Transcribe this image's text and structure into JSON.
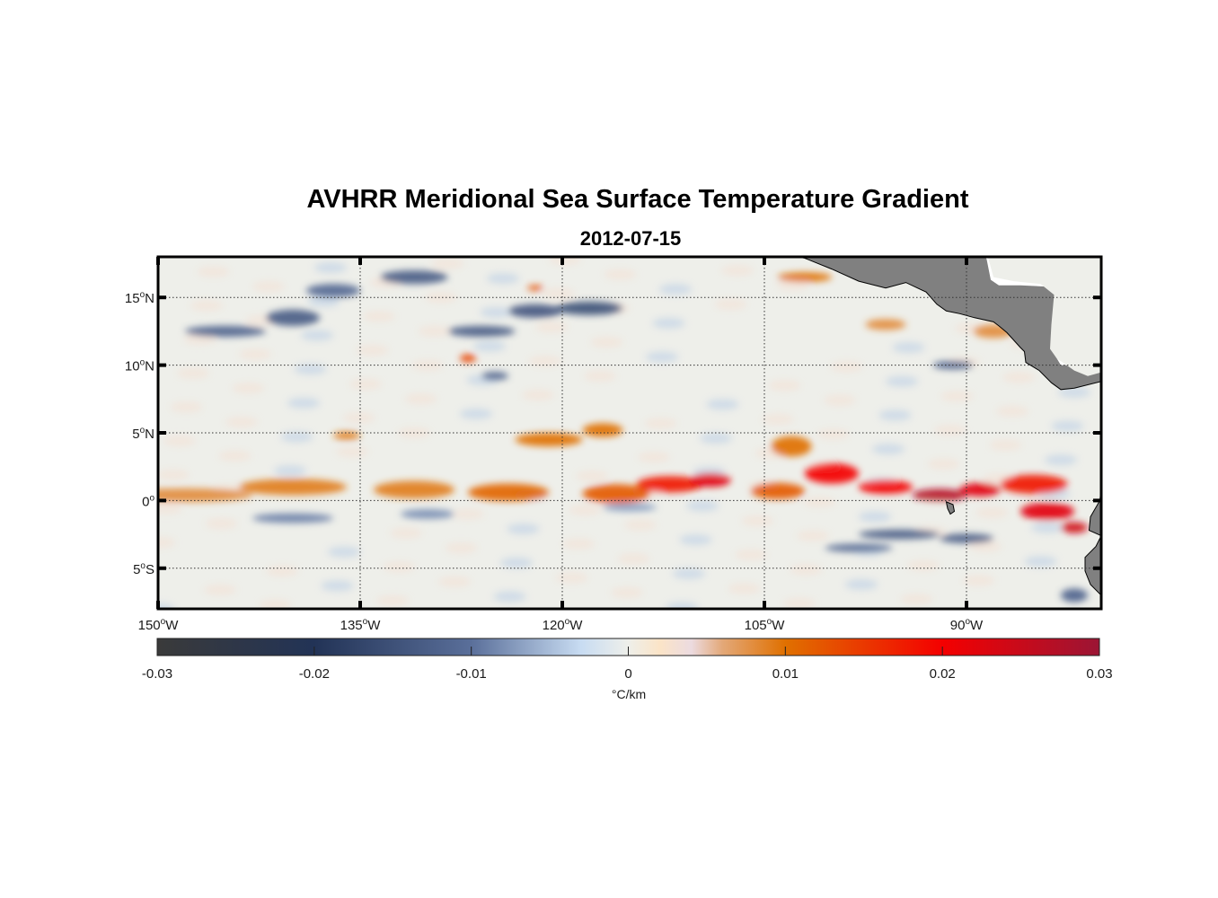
{
  "title": "AVHRR Meridional Sea Surface Temperature Gradient",
  "subtitle": "2012-07-15",
  "map": {
    "lon_range": [
      -150,
      -80
    ],
    "lat_range": [
      -8,
      18
    ],
    "lat_ticks": [
      {
        "value": 15,
        "num": "15",
        "hem": "N"
      },
      {
        "value": 10,
        "num": "10",
        "hem": "N"
      },
      {
        "value": 5,
        "num": "5",
        "hem": "N"
      },
      {
        "value": 0,
        "num": "0",
        "hem": ""
      },
      {
        "value": -5,
        "num": "5",
        "hem": "S"
      }
    ],
    "lon_ticks": [
      {
        "value": -150,
        "num": "150",
        "hem": "W"
      },
      {
        "value": -135,
        "num": "135",
        "hem": "W"
      },
      {
        "value": -120,
        "num": "120",
        "hem": "W"
      },
      {
        "value": -105,
        "num": "105",
        "hem": "W"
      },
      {
        "value": -90,
        "num": "90",
        "hem": "W"
      }
    ],
    "land_color": "#808080",
    "field_features": [
      {
        "lon": -148,
        "lat": 0.4,
        "w": 10,
        "h": 1.0,
        "v": 0.008
      },
      {
        "lon": -140,
        "lat": 1.0,
        "w": 8,
        "h": 1.2,
        "v": 0.009
      },
      {
        "lon": -131,
        "lat": 0.8,
        "w": 6,
        "h": 1.3,
        "v": 0.009
      },
      {
        "lon": -124,
        "lat": 0.6,
        "w": 6,
        "h": 1.3,
        "v": 0.011
      },
      {
        "lon": -116,
        "lat": 0.5,
        "w": 5,
        "h": 1.4,
        "v": 0.012
      },
      {
        "lon": -112,
        "lat": 1.2,
        "w": 5,
        "h": 1.2,
        "v": 0.018
      },
      {
        "lon": -109,
        "lat": 1.5,
        "w": 3,
        "h": 1.0,
        "v": 0.022
      },
      {
        "lon": -104,
        "lat": 0.7,
        "w": 4,
        "h": 1.2,
        "v": 0.012
      },
      {
        "lon": -100,
        "lat": 2.0,
        "w": 4,
        "h": 1.5,
        "v": 0.02
      },
      {
        "lon": -96,
        "lat": 1.0,
        "w": 4,
        "h": 1.0,
        "v": 0.02
      },
      {
        "lon": -92,
        "lat": 0.4,
        "w": 4,
        "h": 0.9,
        "v": 0.027
      },
      {
        "lon": -89,
        "lat": 0.8,
        "w": 3,
        "h": 1.0,
        "v": 0.022
      },
      {
        "lon": -85,
        "lat": 1.2,
        "w": 5,
        "h": 1.4,
        "v": 0.018
      },
      {
        "lon": -84,
        "lat": -0.8,
        "w": 4,
        "h": 1.3,
        "v": 0.022
      },
      {
        "lon": -82,
        "lat": -2.0,
        "w": 2,
        "h": 0.8,
        "v": 0.024
      },
      {
        "lon": -121,
        "lat": 4.5,
        "w": 5,
        "h": 1.0,
        "v": 0.01
      },
      {
        "lon": -117,
        "lat": 5.2,
        "w": 3,
        "h": 1.0,
        "v": 0.01
      },
      {
        "lon": -103,
        "lat": 4.0,
        "w": 3,
        "h": 1.5,
        "v": 0.01
      },
      {
        "lon": -136,
        "lat": 4.8,
        "w": 2,
        "h": 0.6,
        "v": 0.009
      },
      {
        "lon": -102,
        "lat": 16.5,
        "w": 4,
        "h": 0.7,
        "v": 0.01
      },
      {
        "lon": -96,
        "lat": 13.0,
        "w": 3,
        "h": 0.8,
        "v": 0.008
      },
      {
        "lon": -88,
        "lat": 12.5,
        "w": 3,
        "h": 1.0,
        "v": 0.008
      },
      {
        "lon": -127,
        "lat": 10.5,
        "w": 1.2,
        "h": 0.6,
        "v": 0.014
      },
      {
        "lon": -122,
        "lat": 15.7,
        "w": 1.2,
        "h": 0.4,
        "v": 0.013
      },
      {
        "lon": -145,
        "lat": 12.5,
        "w": 6,
        "h": 0.8,
        "v": -0.012
      },
      {
        "lon": -140,
        "lat": 13.5,
        "w": 4,
        "h": 1.2,
        "v": -0.013
      },
      {
        "lon": -137,
        "lat": 15.5,
        "w": 4,
        "h": 1.0,
        "v": -0.011
      },
      {
        "lon": -131,
        "lat": 16.5,
        "w": 5,
        "h": 1.0,
        "v": -0.013
      },
      {
        "lon": -126,
        "lat": 12.5,
        "w": 5,
        "h": 0.8,
        "v": -0.013
      },
      {
        "lon": -122,
        "lat": 14.0,
        "w": 4,
        "h": 1.0,
        "v": -0.014
      },
      {
        "lon": -118,
        "lat": 14.2,
        "w": 5,
        "h": 1.0,
        "v": -0.015
      },
      {
        "lon": -125,
        "lat": 9.2,
        "w": 2,
        "h": 0.6,
        "v": -0.012
      },
      {
        "lon": -140,
        "lat": -1.3,
        "w": 6,
        "h": 0.7,
        "v": -0.009
      },
      {
        "lon": -130,
        "lat": -1.0,
        "w": 4,
        "h": 0.7,
        "v": -0.008
      },
      {
        "lon": -115,
        "lat": -0.5,
        "w": 4,
        "h": 0.6,
        "v": -0.007
      },
      {
        "lon": -95,
        "lat": -2.5,
        "w": 6,
        "h": 0.7,
        "v": -0.013
      },
      {
        "lon": -90,
        "lat": -2.8,
        "w": 4,
        "h": 0.7,
        "v": -0.013
      },
      {
        "lon": -98,
        "lat": -3.5,
        "w": 5,
        "h": 0.6,
        "v": -0.011
      },
      {
        "lon": -91,
        "lat": 10.0,
        "w": 3,
        "h": 0.6,
        "v": -0.012
      },
      {
        "lon": -82,
        "lat": -7.0,
        "w": 2,
        "h": 1.0,
        "v": -0.012
      }
    ]
  },
  "colorbar": {
    "min": -0.03,
    "max": 0.03,
    "ticks": [
      "-0.03",
      "-0.02",
      "-0.01",
      "0",
      "0.01",
      "0.02",
      "0.03"
    ],
    "tick_values": [
      -0.03,
      -0.02,
      -0.01,
      0,
      0.01,
      0.02,
      0.03
    ],
    "label": "°C/km",
    "stops": [
      {
        "v": -0.03,
        "color": "#3a3a3a"
      },
      {
        "v": -0.02,
        "color": "#223356"
      },
      {
        "v": -0.01,
        "color": "#5a6f9a"
      },
      {
        "v": -0.003,
        "color": "#c8dcf2"
      },
      {
        "v": 0,
        "color": "#eeefea"
      },
      {
        "v": 0.002,
        "color": "#fbe4c7"
      },
      {
        "v": 0.004,
        "color": "#ecdbe0"
      },
      {
        "v": 0.006,
        "color": "#e3a878"
      },
      {
        "v": 0.01,
        "color": "#e07000"
      },
      {
        "v": 0.02,
        "color": "#f40000"
      },
      {
        "v": 0.03,
        "color": "#9b1535"
      }
    ]
  }
}
